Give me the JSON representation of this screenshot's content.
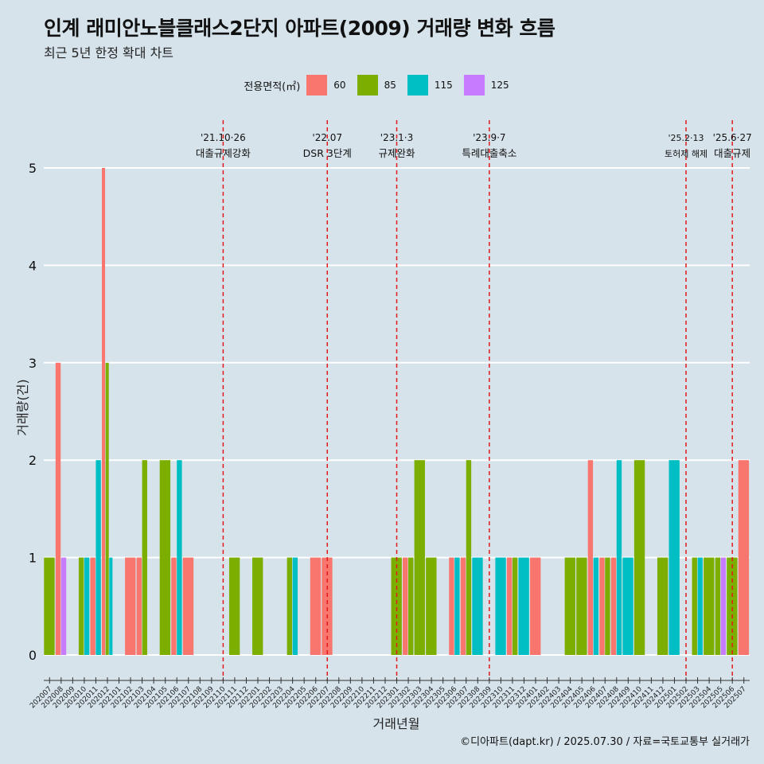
{
  "header": {
    "title": "인계 래미안노블클래스2단지 아파트(2009) 거래량 변화 흐름",
    "subtitle": "최근 5년 한정 확대 차트"
  },
  "legend": {
    "title": "전용면적(㎡)",
    "items": [
      {
        "label": "60",
        "color": "#f8766d"
      },
      {
        "label": "85",
        "color": "#7cae00"
      },
      {
        "label": "115",
        "color": "#00bfc4"
      },
      {
        "label": "125",
        "color": "#c77cff"
      }
    ]
  },
  "caption": "©디아파트(dapt.kr) / 2025.07.30 / 자료=국토교통부 실거래가",
  "chart_data": {
    "type": "bar",
    "xlabel": "거래년월",
    "ylabel": "거래량(건)",
    "ylim": [
      0,
      5
    ],
    "yticks": [
      0,
      1,
      2,
      3,
      4,
      5
    ],
    "grid": true,
    "legend_position": "top",
    "categories": [
      "202007",
      "202008",
      "202009",
      "202010",
      "202011",
      "202012",
      "202101",
      "202102",
      "202103",
      "202104",
      "202105",
      "202106",
      "202107",
      "202108",
      "202109",
      "202110",
      "202111",
      "202112",
      "202201",
      "202202",
      "202203",
      "202204",
      "202205",
      "202206",
      "202207",
      "202208",
      "202209",
      "202210",
      "202211",
      "202212",
      "202301",
      "202302",
      "202303",
      "202304",
      "202305",
      "202306",
      "202307",
      "202308",
      "202309",
      "202310",
      "202311",
      "202312",
      "202401",
      "202402",
      "202403",
      "202404",
      "202405",
      "202406",
      "202407",
      "202408",
      "202409",
      "202410",
      "202411",
      "202412",
      "202501",
      "202502",
      "202503",
      "202504",
      "202505",
      "202506",
      "202507"
    ],
    "series": [
      {
        "name": "60",
        "color": "#f8766d",
        "values": [
          0,
          3,
          0,
          0,
          1,
          5,
          0,
          1,
          1,
          0,
          0,
          1,
          1,
          0,
          0,
          0,
          0,
          0,
          0,
          0,
          0,
          0,
          0,
          1,
          1,
          0,
          0,
          0,
          0,
          0,
          0,
          1,
          0,
          0,
          0,
          1,
          1,
          0,
          0,
          0,
          1,
          0,
          1,
          0,
          0,
          0,
          0,
          2,
          1,
          1,
          0,
          0,
          0,
          0,
          0,
          0,
          0,
          0,
          0,
          0,
          2
        ]
      },
      {
        "name": "85",
        "color": "#7cae00",
        "values": [
          1,
          0,
          0,
          1,
          0,
          3,
          0,
          0,
          2,
          0,
          2,
          0,
          0,
          0,
          0,
          0,
          1,
          0,
          1,
          0,
          0,
          1,
          0,
          0,
          0,
          0,
          0,
          0,
          0,
          0,
          1,
          1,
          2,
          1,
          0,
          0,
          2,
          0,
          0,
          0,
          1,
          0,
          0,
          0,
          0,
          1,
          1,
          0,
          1,
          0,
          0,
          2,
          0,
          1,
          0,
          0,
          1,
          1,
          1,
          1,
          0
        ]
      },
      {
        "name": "115",
        "color": "#00bfc4",
        "values": [
          0,
          0,
          0,
          1,
          2,
          1,
          0,
          0,
          0,
          0,
          0,
          2,
          0,
          0,
          0,
          0,
          0,
          0,
          0,
          0,
          0,
          1,
          0,
          0,
          0,
          0,
          0,
          0,
          0,
          0,
          0,
          0,
          0,
          0,
          0,
          1,
          0,
          1,
          0,
          1,
          0,
          1,
          0,
          0,
          0,
          0,
          0,
          1,
          0,
          2,
          1,
          0,
          0,
          0,
          2,
          0,
          1,
          0,
          0,
          0,
          0
        ]
      },
      {
        "name": "125",
        "color": "#c77cff",
        "values": [
          0,
          1,
          0,
          0,
          0,
          0,
          0,
          0,
          0,
          0,
          0,
          0,
          0,
          0,
          0,
          0,
          0,
          0,
          0,
          0,
          0,
          0,
          0,
          0,
          0,
          0,
          0,
          0,
          0,
          0,
          0,
          0,
          0,
          0,
          0,
          0,
          0,
          0,
          0,
          0,
          0,
          0,
          0,
          0,
          0,
          0,
          0,
          0,
          0,
          0,
          0,
          0,
          0,
          0,
          0,
          0,
          0,
          0,
          1,
          0,
          0
        ]
      }
    ],
    "annotations": [
      {
        "x": "202110",
        "date": "'21.10·26",
        "label": "대출규제강화"
      },
      {
        "x": "202207",
        "date": "'22.07",
        "label": "DSR 3단계"
      },
      {
        "x": "202301",
        "date": "'23.1·3",
        "label": "규제완화"
      },
      {
        "x": "202309",
        "date": "'23.9·7",
        "label": "특례대출축소"
      },
      {
        "x": "202502",
        "date": "'25.2·13",
        "label": "토허제 해제"
      },
      {
        "x": "202506",
        "date": "'25.6·27",
        "label": "대출규제"
      }
    ]
  }
}
